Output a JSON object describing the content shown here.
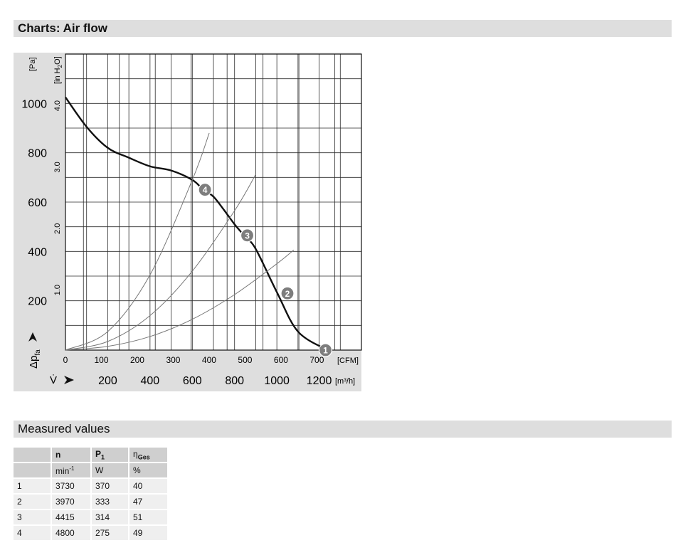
{
  "section_chart": {
    "title": "Charts: Air flow"
  },
  "section_measured": {
    "title": "Measured values"
  },
  "chart_data": {
    "type": "line",
    "y_unit_left": "[Pa]",
    "y_unit_inner_main": "[in H",
    "y_unit_inner_sub": "2",
    "y_unit_inner_end": "O]",
    "y_symbol_main": "Δp",
    "y_symbol_sub": "fa",
    "y_ticks_pa": [
      200,
      400,
      600,
      800,
      1000
    ],
    "y_ticks_inh2o": [
      "1.0",
      "2.0",
      "3.0",
      "4.0"
    ],
    "x_symbol": "V̇",
    "x_unit_cfm": "[CFM]",
    "x_unit_m3h": "[m³/h]",
    "x_ticks_cfm": [
      0,
      100,
      200,
      300,
      400,
      500,
      600,
      700
    ],
    "x_ticks_m3h": [
      200,
      400,
      600,
      800,
      1000,
      1200
    ],
    "xlim_m3h": [
      0,
      1400
    ],
    "ylim_pa": [
      0,
      1200
    ],
    "grid": true,
    "series": [
      {
        "kind": "fan-curve",
        "x": [
          0,
          100,
          200,
          300,
          400,
          500,
          600,
          650,
          700,
          750,
          800,
          850,
          900,
          1000,
          1100,
          1240
        ],
        "y": [
          1025,
          905,
          820,
          780,
          745,
          728,
          690,
          652,
          622,
          568,
          510,
          460,
          410,
          235,
          75,
          0
        ]
      },
      {
        "kind": "system-curve",
        "x": [
          0,
          200,
          400,
          600,
          800,
          1000,
          1080
        ],
        "y": [
          0,
          15,
          55,
          125,
          225,
          350,
          406
        ]
      },
      {
        "kind": "system-curve",
        "x": [
          0,
          200,
          400,
          600,
          800,
          900
        ],
        "y": [
          0,
          35,
          140,
          320,
          565,
          712
        ]
      },
      {
        "kind": "system-curve",
        "x": [
          0,
          200,
          400,
          600,
          680
        ],
        "y": [
          0,
          75,
          305,
          690,
          880
        ]
      }
    ],
    "operating_points": [
      {
        "label": "1",
        "x": 1230,
        "y": 0
      },
      {
        "label": "2",
        "x": 1050,
        "y": 230
      },
      {
        "label": "3",
        "x": 860,
        "y": 465
      },
      {
        "label": "4",
        "x": 660,
        "y": 650
      }
    ],
    "colors": {
      "fan_curve": "#111111",
      "system_curve": "#777777",
      "grid": "#2a2a2a",
      "panel": "#dedede",
      "marker": "#7d7d7d"
    }
  },
  "measured": {
    "headers": [
      "",
      "n",
      "P",
      "η"
    ],
    "header_subs": [
      "",
      "",
      "1",
      "Ges"
    ],
    "units": [
      "",
      "min",
      "W",
      "%"
    ],
    "unit_sups": [
      "",
      "-1",
      "",
      ""
    ],
    "rows": [
      [
        "1",
        "3730",
        "370",
        "40"
      ],
      [
        "2",
        "3970",
        "333",
        "47"
      ],
      [
        "3",
        "4415",
        "314",
        "51"
      ],
      [
        "4",
        "4800",
        "275",
        "49"
      ]
    ]
  }
}
